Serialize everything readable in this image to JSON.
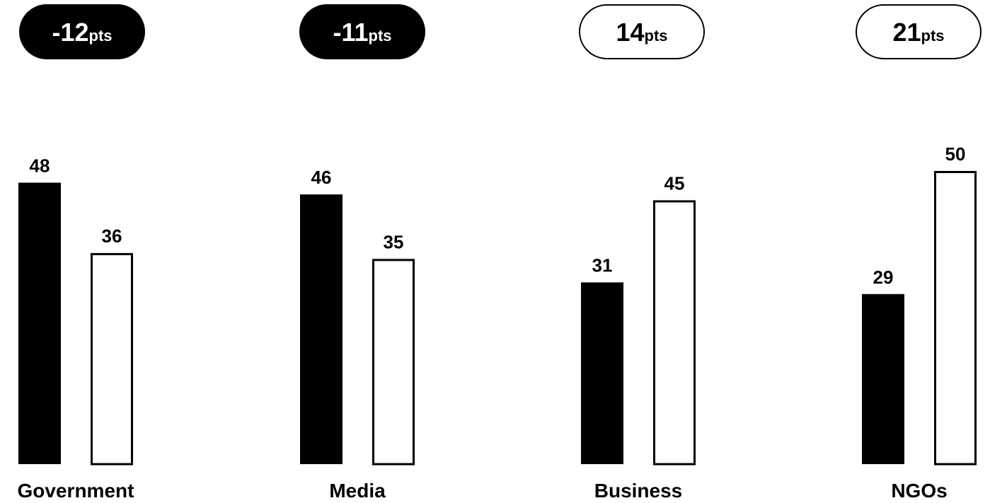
{
  "chart_data": {
    "type": "bar",
    "title": "",
    "xlabel": "",
    "ylabel": "",
    "ylim": [
      0,
      60
    ],
    "grid": false,
    "legend": "none",
    "categories": [
      "Government",
      "Media",
      "Business",
      "NGOs"
    ],
    "series": [
      {
        "values": [
          48,
          46,
          31,
          29
        ],
        "color": "#000000",
        "fill": "solid"
      },
      {
        "values": [
          36,
          35,
          45,
          50
        ],
        "color": "#000000",
        "fill": "outline"
      }
    ],
    "change_badges": [
      {
        "value": "-12",
        "unit": "pts",
        "style": "filled"
      },
      {
        "value": "-11",
        "unit": "pts",
        "style": "filled"
      },
      {
        "value": "14",
        "unit": "pts",
        "style": "outline"
      },
      {
        "value": "21",
        "unit": "pts",
        "style": "outline"
      }
    ]
  }
}
